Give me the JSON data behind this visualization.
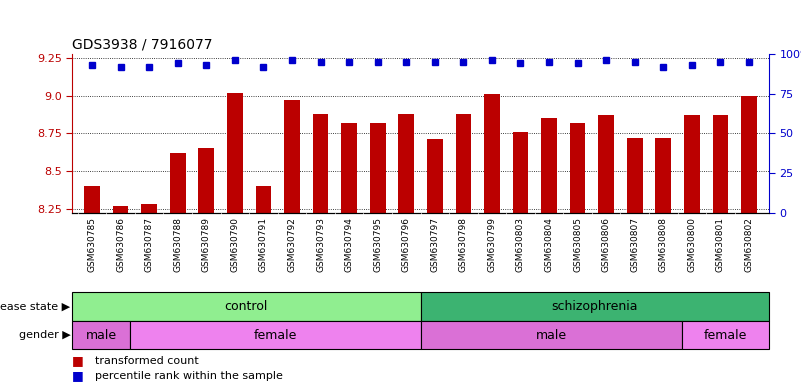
{
  "title": "GDS3938 / 7916077",
  "samples": [
    "GSM630785",
    "GSM630786",
    "GSM630787",
    "GSM630788",
    "GSM630789",
    "GSM630790",
    "GSM630791",
    "GSM630792",
    "GSM630793",
    "GSM630794",
    "GSM630795",
    "GSM630796",
    "GSM630797",
    "GSM630798",
    "GSM630799",
    "GSM630803",
    "GSM630804",
    "GSM630805",
    "GSM630806",
    "GSM630807",
    "GSM630808",
    "GSM630800",
    "GSM630801",
    "GSM630802"
  ],
  "bar_values": [
    8.4,
    8.27,
    8.28,
    8.62,
    8.65,
    9.02,
    8.4,
    8.97,
    8.88,
    8.82,
    8.82,
    8.88,
    8.71,
    8.88,
    9.01,
    8.76,
    8.85,
    8.82,
    8.87,
    8.72,
    8.72,
    8.87,
    8.87,
    9.0
  ],
  "percentile_values": [
    93,
    92,
    92,
    94,
    93,
    96,
    92,
    96,
    95,
    95,
    95,
    95,
    95,
    95,
    96,
    94,
    95,
    94,
    96,
    95,
    92,
    93,
    95,
    95
  ],
  "ylim_left": [
    8.22,
    9.28
  ],
  "ylim_right": [
    0,
    100
  ],
  "yticks_left": [
    8.25,
    8.5,
    8.75,
    9.0,
    9.25
  ],
  "yticks_right": [
    0,
    25,
    50,
    75,
    100
  ],
  "bar_color": "#BB0000",
  "dot_color": "#0000CC",
  "legend_bar_label": "transformed count",
  "legend_dot_label": "percentile rank within the sample",
  "disease_state_label": "disease state",
  "gender_label": "gender",
  "control_color": "#90EE90",
  "schizophrenia_color": "#3CB371",
  "male_color": "#DA70D6",
  "female_color": "#EE82EE",
  "disease_blocks": [
    [
      0,
      12,
      "control"
    ],
    [
      12,
      24,
      "schizophrenia"
    ]
  ],
  "gender_blocks": [
    [
      0,
      2,
      "male"
    ],
    [
      2,
      12,
      "female"
    ],
    [
      12,
      21,
      "male"
    ],
    [
      21,
      24,
      "female"
    ]
  ]
}
